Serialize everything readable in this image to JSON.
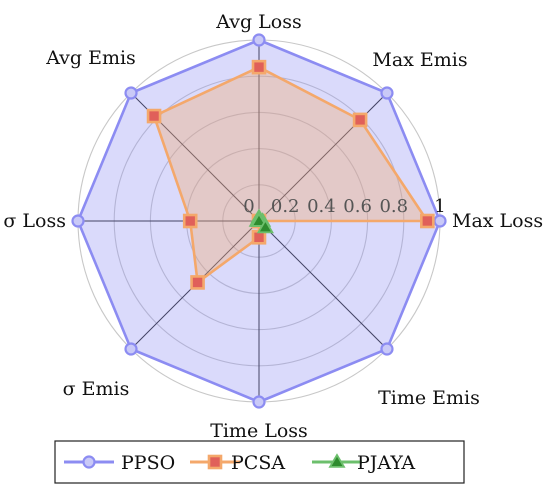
{
  "chart_data": {
    "type": "radar",
    "axes": [
      "Max Loss",
      "Max Emis",
      "Avg Loss",
      "Avg Emis",
      "σ Loss",
      "σ Emis",
      "Time Loss",
      "Time Emis"
    ],
    "rlim": [
      0,
      1
    ],
    "ticks": [
      "0",
      "0.2",
      "0.4",
      "0.6",
      "0.8",
      "1"
    ],
    "tick_values": [
      0,
      0.2,
      0.4,
      0.6,
      0.8,
      1
    ],
    "grid": true,
    "legend_position": "bottom",
    "series": [
      {
        "name": "PPSO",
        "values": [
          1,
          1,
          1,
          1,
          1,
          1,
          1,
          1
        ],
        "color": "#8c8cf2",
        "marker": "circle"
      },
      {
        "name": "PCSA",
        "values": [
          0.93,
          0.79,
          0.85,
          0.82,
          0.38,
          0.48,
          0.09,
          0.0
        ],
        "color": "#f4a86b",
        "marker": "square"
      },
      {
        "name": "PJAYA",
        "values": [
          0.02,
          0.0,
          0.02,
          0.0,
          0.01,
          0.0,
          0.0,
          0.05
        ],
        "color": "#6cbf6c",
        "marker": "triangle"
      }
    ]
  }
}
